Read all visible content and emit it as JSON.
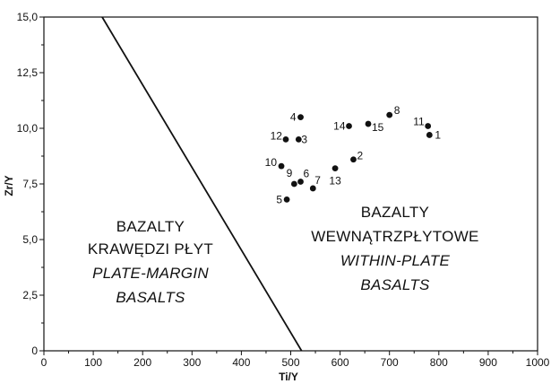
{
  "chart_data": {
    "type": "scatter",
    "xlabel": "Ti/Y",
    "ylabel": "Zr/Y",
    "xlim": [
      0,
      1000
    ],
    "ylim": [
      0,
      15
    ],
    "x_ticks": [
      0,
      100,
      200,
      300,
      400,
      500,
      600,
      700,
      800,
      900,
      1000
    ],
    "y_ticks": [
      0,
      2.5,
      5.0,
      7.5,
      10.0,
      12.5,
      15.0
    ],
    "y_tick_labels": [
      "0",
      "2,5",
      "5,0",
      "7,5",
      "10,0",
      "12,5",
      "15,0"
    ],
    "grid": false,
    "boundary_line": {
      "x": [
        118,
        522
      ],
      "y": [
        15,
        0
      ]
    },
    "points": [
      {
        "label": "1",
        "x": 781,
        "y": 9.7
      },
      {
        "label": "2",
        "x": 627,
        "y": 8.6
      },
      {
        "label": "3",
        "x": 516,
        "y": 9.5
      },
      {
        "label": "4",
        "x": 520,
        "y": 10.5
      },
      {
        "label": "5",
        "x": 492,
        "y": 6.8
      },
      {
        "label": "6",
        "x": 520,
        "y": 7.6
      },
      {
        "label": "7",
        "x": 545,
        "y": 7.3
      },
      {
        "label": "8",
        "x": 700,
        "y": 10.6
      },
      {
        "label": "9",
        "x": 507,
        "y": 7.5
      },
      {
        "label": "10",
        "x": 481,
        "y": 8.3
      },
      {
        "label": "11",
        "x": 778,
        "y": 10.1
      },
      {
        "label": "12",
        "x": 490,
        "y": 9.5
      },
      {
        "label": "13",
        "x": 590,
        "y": 8.2
      },
      {
        "label": "14",
        "x": 618,
        "y": 10.1
      },
      {
        "label": "15",
        "x": 657,
        "y": 10.2
      }
    ],
    "regions": {
      "plate_margin": [
        "BAZALTY",
        "KRAWĘDZI PŁYT",
        "PLATE-MARGIN",
        "BASALTS"
      ],
      "within_plate": [
        "BAZALTY",
        "WEWNĄTRZPŁYTOWE",
        "WITHIN-PLATE",
        "BASALTS"
      ]
    }
  }
}
